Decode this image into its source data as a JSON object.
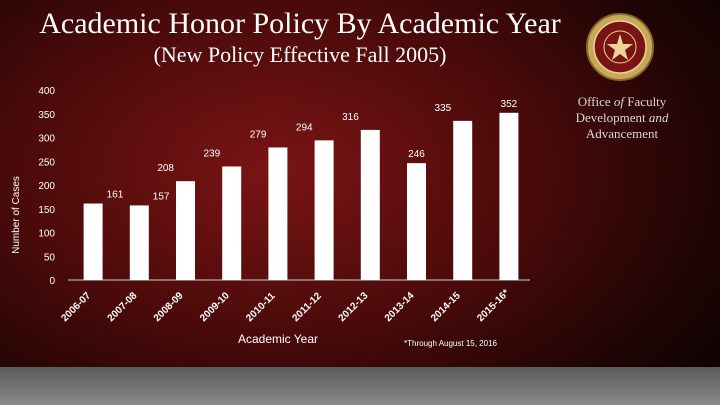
{
  "header": {
    "title": "Academic Honor Policy By Academic Year",
    "subtitle": "(New Policy Effective Fall 2005)"
  },
  "office": {
    "line1_a": "Office ",
    "line1_b": "of",
    "line1_c": " Faculty",
    "line2_a": "Development ",
    "line2_b": "and",
    "line3": "Advancement"
  },
  "logo": {
    "icon": "university-seal-icon"
  },
  "footnote": "*Through August 15, 2016",
  "colors": {
    "bar": "#ffffff",
    "text": "#ffffff",
    "axis": "#cfcfcf"
  },
  "chart_data": {
    "type": "bar",
    "categories": [
      "2006-07",
      "2007-08",
      "2008-09",
      "2009-10",
      "2010-11",
      "2011-12",
      "2012-13",
      "2013-14",
      "2014-15",
      "2015-16*"
    ],
    "values": [
      161,
      157,
      208,
      239,
      279,
      294,
      316,
      246,
      335,
      352
    ],
    "xlabel": "Academic Year",
    "ylabel": "Number of Cases",
    "ylim": [
      0,
      400
    ],
    "yticks": [
      0,
      50,
      100,
      150,
      200,
      250,
      300,
      350,
      400
    ],
    "grid": false,
    "legend": "none",
    "data_labels": true
  }
}
